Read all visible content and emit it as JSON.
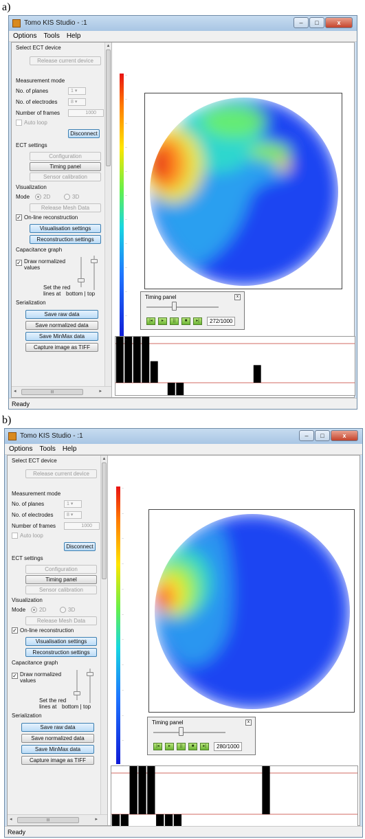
{
  "figure": {
    "label_a": "a)",
    "label_b": "b)"
  },
  "panels": [
    {
      "window": {
        "title": "Tomo KIS Studio - :1",
        "icon": "app-icon",
        "min": "–",
        "max": "□",
        "close": "x"
      },
      "menu": [
        "Options",
        "Tools",
        "Help"
      ],
      "status": "Ready",
      "settings": {
        "select_device": "Select ECT device",
        "release_device": "Release current device",
        "measurement_mode": "Measurement mode",
        "planes_label": "No. of planes",
        "planes_value": "1",
        "electrodes_label": "No. of electrodes",
        "electrodes_value": "8",
        "frames_label": "Number of frames",
        "frames_value": "1000",
        "autoloop": "Auto loop",
        "disconnect": "Disconnect",
        "ect_settings": "ECT settings",
        "configuration": "Configuration",
        "timing_panel_btn": "Timing panel",
        "sensor_calibration": "Sensor calibration",
        "visualization": "Visualization",
        "mode_label": "Mode",
        "mode_2d": "2D",
        "mode_3d": "3D",
        "release_mesh": "Release Mesh Data",
        "online_reconstruction": "On-line reconstruction",
        "vis_settings": "Visualisation settings",
        "rec_settings": "Reconstruction settings",
        "capacitance_graph": "Capacitance graph",
        "draw_normalized_1": "Draw normalized",
        "draw_normalized_2": "values",
        "set_red_1": "Set the red",
        "set_red_2": "lines at",
        "bottom_top": "bottom | top",
        "serialization": "Serialization",
        "save_raw": "Save raw data",
        "save_norm": "Save normalized data",
        "save_minmax": "Save MinMax data",
        "capture_tiff": "Capture image as TIFF"
      },
      "timing": {
        "title": "Timing panel",
        "frame": "272/1000",
        "progress": 0.272,
        "close": "x",
        "controls": [
          "first",
          "play",
          "pause",
          "stop",
          "last"
        ]
      },
      "capacitance_bars": [
        1,
        1,
        1,
        1,
        0.55,
        0,
        0.12,
        0.12,
        0,
        0,
        0,
        0,
        0,
        0,
        0,
        0,
        0.45,
        0,
        0,
        0,
        0,
        0,
        0,
        0,
        0,
        0,
        0,
        0
      ],
      "colors": {
        "accent": "#3c7fb1",
        "redline": "#c0392b"
      }
    },
    {
      "window": {
        "title": "Tomo KIS Studio - :1",
        "icon": "app-icon",
        "min": "–",
        "max": "□",
        "close": "x"
      },
      "menu": [
        "Options",
        "Tools",
        "Help"
      ],
      "status": "Ready",
      "settings": {
        "select_device": "Select ECT device",
        "release_device": "Release current device",
        "measurement_mode": "Measurement mode",
        "planes_label": "No. of planes",
        "planes_value": "1",
        "electrodes_label": "No. of electrodes",
        "electrodes_value": "8",
        "frames_label": "Number of frames",
        "frames_value": "1000",
        "autoloop": "Auto loop",
        "disconnect": "Disconnect",
        "ect_settings": "ECT settings",
        "configuration": "Configuration",
        "timing_panel_btn": "Timing panel",
        "sensor_calibration": "Sensor calibration",
        "visualization": "Visualization",
        "mode_label": "Mode",
        "mode_2d": "2D",
        "mode_3d": "3D",
        "release_mesh": "Release Mesh Data",
        "online_reconstruction": "On-line reconstruction",
        "vis_settings": "Visualisation settings",
        "rec_settings": "Reconstruction settings",
        "capacitance_graph": "Capacitance graph",
        "draw_normalized_1": "Draw normalized",
        "draw_normalized_2": "values",
        "set_red_1": "Set the red",
        "set_red_2": "lines at",
        "bottom_top": "bottom | top",
        "serialization": "Serialization",
        "save_raw": "Save raw data",
        "save_norm": "Save normalized data",
        "save_minmax": "Save MinMax data",
        "capture_tiff": "Capture image as TIFF"
      },
      "timing": {
        "title": "Timing panel",
        "frame": "280/1000",
        "progress": 0.28,
        "close": "x",
        "controls": [
          "first",
          "play",
          "pause",
          "stop",
          "last"
        ]
      },
      "capacitance_bars": [
        0.15,
        0.15,
        1,
        1,
        1,
        0.1,
        0.15,
        0.15,
        0,
        0,
        0,
        0,
        0,
        0,
        0,
        0,
        0,
        1,
        0,
        0,
        0,
        0,
        0,
        0,
        0,
        0,
        0,
        0
      ],
      "colors": {
        "accent": "#3c7fb1",
        "redline": "#c0392b"
      }
    }
  ]
}
